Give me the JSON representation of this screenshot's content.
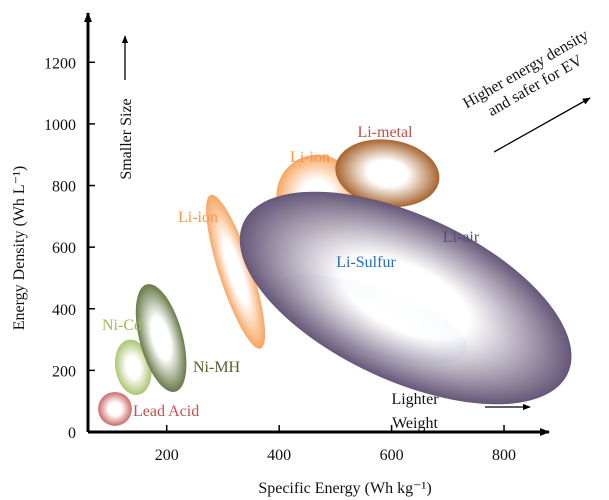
{
  "chart_data": {
    "type": "scatter",
    "title": "",
    "xlabel": "Specific Energy (Wh kg⁻¹)",
    "ylabel": "Energy Density (Wh L⁻¹)",
    "xlim": [
      60,
      880
    ],
    "ylim": [
      0,
      1360
    ],
    "x_ticks": [
      200,
      400,
      600,
      800
    ],
    "y_ticks": [
      0,
      200,
      400,
      600,
      800,
      1000,
      1200
    ],
    "grid": false,
    "legend": "none",
    "regions": [
      {
        "name": "Lead Acid",
        "x_range": [
          78,
          138
        ],
        "y_range": [
          20,
          130
        ],
        "angle": 0,
        "color": "#c0504d",
        "label_color": "#c0504d"
      },
      {
        "name": "Ni-Cd",
        "x_range": [
          108,
          173
        ],
        "y_range": [
          120,
          300
        ],
        "angle": 10,
        "color": "#9bbb59",
        "label_color": "#9bbb59"
      },
      {
        "name": "Ni-MH",
        "x_range": [
          145,
          235
        ],
        "y_range": [
          130,
          480
        ],
        "angle": 15,
        "color": "#4f6228",
        "label_color": "#4f6228"
      },
      {
        "name": "Li-ion",
        "x_range": [
          270,
          375
        ],
        "y_range": [
          270,
          770
        ],
        "angle": 18,
        "color": "#f79646",
        "label_color": "#f79646"
      },
      {
        "name": "Li-ion",
        "x_range": [
          395,
          540
        ],
        "y_range": [
          630,
          900
        ],
        "angle": 0,
        "color": "#f79646",
        "label_color": "#f79646"
      },
      {
        "name": "Li-metal",
        "x_range": [
          500,
          685
        ],
        "y_range": [
          730,
          950
        ],
        "angle": -8,
        "color": "#984807",
        "label_color": "#c0504d"
      },
      {
        "name": "Li-Sulfur",
        "x_range": [
          385,
          735
        ],
        "y_range": [
          220,
          510
        ],
        "angle": -18,
        "color": "#1f6cc1",
        "label_color": "#1f6cc1"
      },
      {
        "name": "Li-air",
        "x_range": [
          330,
          920
        ],
        "y_range": [
          90,
          780
        ],
        "angle": -25,
        "color": "#4b3a61",
        "label_color": "#60497a"
      }
    ],
    "annotations": {
      "smaller_size": "Smaller Size",
      "lighter": "Lighter",
      "weight": "Weight",
      "higher_line1": "Higher energy density",
      "higher_line2": "and safer for EV"
    }
  }
}
